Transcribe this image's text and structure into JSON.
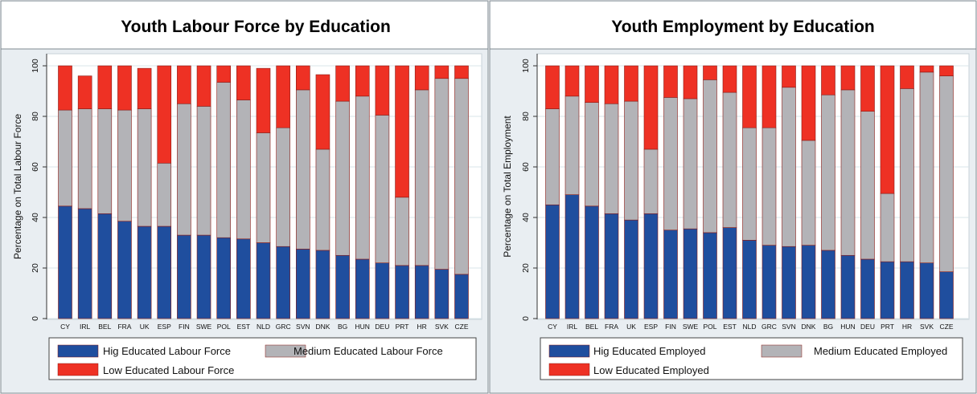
{
  "colors": {
    "high": "#1f4e9e",
    "medium": "#b3b3b7",
    "low": "#ee3124",
    "panel_bg": "#e9eef2",
    "plot_bg": "#ffffff",
    "grid": "#d9e4ea",
    "bar_edge": "#8a1a14"
  },
  "chart_data": [
    {
      "type": "bar",
      "stacked": true,
      "title": "Youth Labour Force by Education",
      "xlabel": "",
      "ylabel": "Percentage on Total Labour Force",
      "ylim": [
        0,
        100
      ],
      "yticks": [
        0,
        20,
        40,
        60,
        80,
        100
      ],
      "grid": true,
      "legend_position": "bottom",
      "categories": [
        "CY",
        "IRL",
        "BEL",
        "FRA",
        "UK",
        "ESP",
        "FIN",
        "SWE",
        "POL",
        "EST",
        "NLD",
        "GRC",
        "SVN",
        "DNK",
        "BG",
        "HUN",
        "DEU",
        "PRT",
        "HR",
        "SVK",
        "CZE"
      ],
      "series": [
        {
          "name": "Hig Educated Labour Force",
          "color_key": "high",
          "values": [
            44.5,
            43.5,
            41.5,
            38.5,
            36.5,
            36.5,
            33,
            33,
            32,
            31.5,
            30,
            28.5,
            27.5,
            27,
            25,
            23.5,
            22,
            21,
            21,
            19.5,
            17.5
          ]
        },
        {
          "name": "Medium Educated Labour Force",
          "color_key": "medium",
          "values": [
            38,
            39.5,
            41.5,
            44,
            46.5,
            25,
            52,
            51,
            61.5,
            55,
            43.5,
            47,
            63,
            40,
            61,
            64.5,
            58.5,
            27,
            69.5,
            75.5,
            77.5
          ]
        },
        {
          "name": "Low Educated Labour Force",
          "color_key": "low",
          "values": [
            17.5,
            13,
            17,
            17.5,
            16,
            38.5,
            15,
            16,
            6.5,
            13.5,
            25.5,
            24.5,
            9.5,
            29.5,
            14,
            12,
            19.5,
            52,
            9.5,
            5,
            5
          ]
        }
      ]
    },
    {
      "type": "bar",
      "stacked": true,
      "title": "Youth Employment by Education",
      "xlabel": "",
      "ylabel": "Percentage on Total Employment",
      "ylim": [
        0,
        100
      ],
      "yticks": [
        0,
        20,
        40,
        60,
        80,
        100
      ],
      "grid": true,
      "legend_position": "bottom",
      "categories": [
        "CY",
        "IRL",
        "BEL",
        "FRA",
        "UK",
        "ESP",
        "FIN",
        "SWE",
        "POL",
        "EST",
        "NLD",
        "GRC",
        "SVN",
        "DNK",
        "BG",
        "HUN",
        "DEU",
        "PRT",
        "HR",
        "SVK",
        "CZE"
      ],
      "series": [
        {
          "name": "Hig Educated Employed",
          "color_key": "high",
          "values": [
            45,
            49,
            44.5,
            41.5,
            39,
            41.5,
            35,
            35.5,
            34,
            36,
            31,
            29,
            28.5,
            29,
            27,
            25,
            23.5,
            22.5,
            22.5,
            22,
            18.5
          ]
        },
        {
          "name": "Medium Educated Employed",
          "color_key": "medium",
          "values": [
            38,
            39,
            41,
            43.5,
            47,
            25.5,
            52.5,
            51.5,
            60.5,
            53.5,
            44.5,
            46.5,
            63,
            41.5,
            61.5,
            65.5,
            58.5,
            27,
            68.5,
            75.5,
            77.5
          ]
        },
        {
          "name": "Low Educated Employed",
          "color_key": "low",
          "values": [
            17,
            12,
            14.5,
            15,
            14,
            33,
            12.5,
            13,
            5.5,
            10.5,
            24.5,
            24.5,
            8.5,
            29.5,
            11.5,
            9.5,
            18,
            50.5,
            9,
            2.5,
            4
          ]
        }
      ]
    }
  ]
}
